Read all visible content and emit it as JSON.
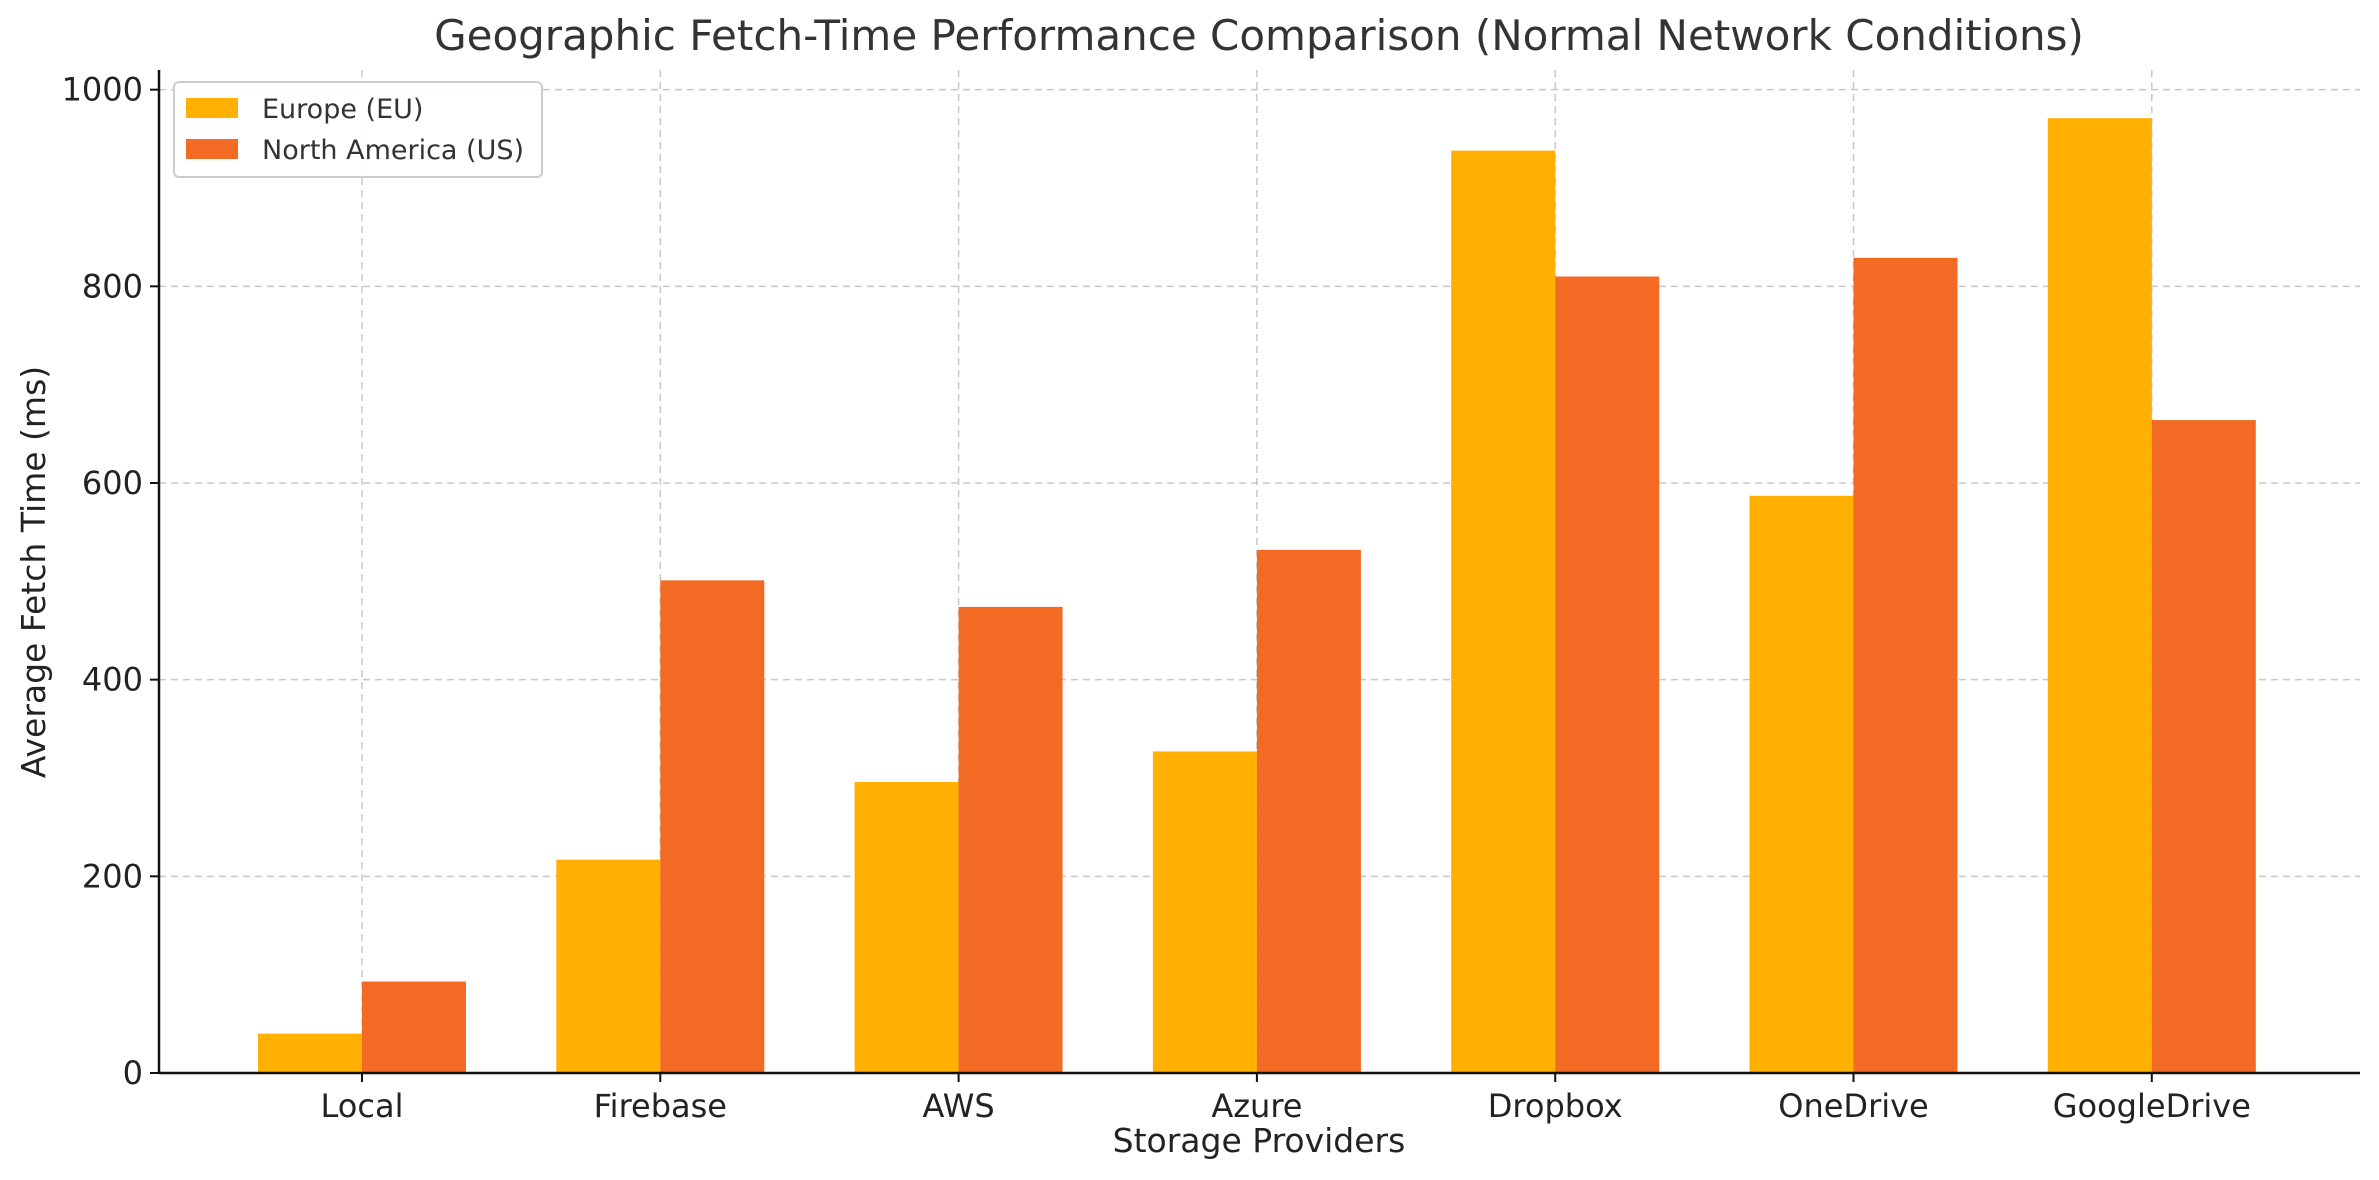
{
  "chart_data": {
    "type": "bar",
    "title": "Geographic Fetch-Time Performance Comparison (Normal Network Conditions)",
    "xlabel": "Storage Providers",
    "ylabel": "Average Fetch Time (ms)",
    "categories": [
      "Local",
      "Firebase",
      "AWS",
      "Azure",
      "Dropbox",
      "OneDrive",
      "GoogleDrive"
    ],
    "series": [
      {
        "name": "Europe (EU)",
        "color": "#FFB000",
        "values": [
          40,
          217,
          296,
          327,
          938,
          587,
          971
        ]
      },
      {
        "name": "North America (US)",
        "color": "#F26A24",
        "values": [
          93,
          501,
          474,
          532,
          810,
          829,
          664
        ]
      }
    ],
    "ylim": [
      0,
      1020
    ],
    "yticks": [
      0,
      200,
      400,
      600,
      800,
      1000
    ],
    "grid": true,
    "legend_position": "top-left"
  }
}
